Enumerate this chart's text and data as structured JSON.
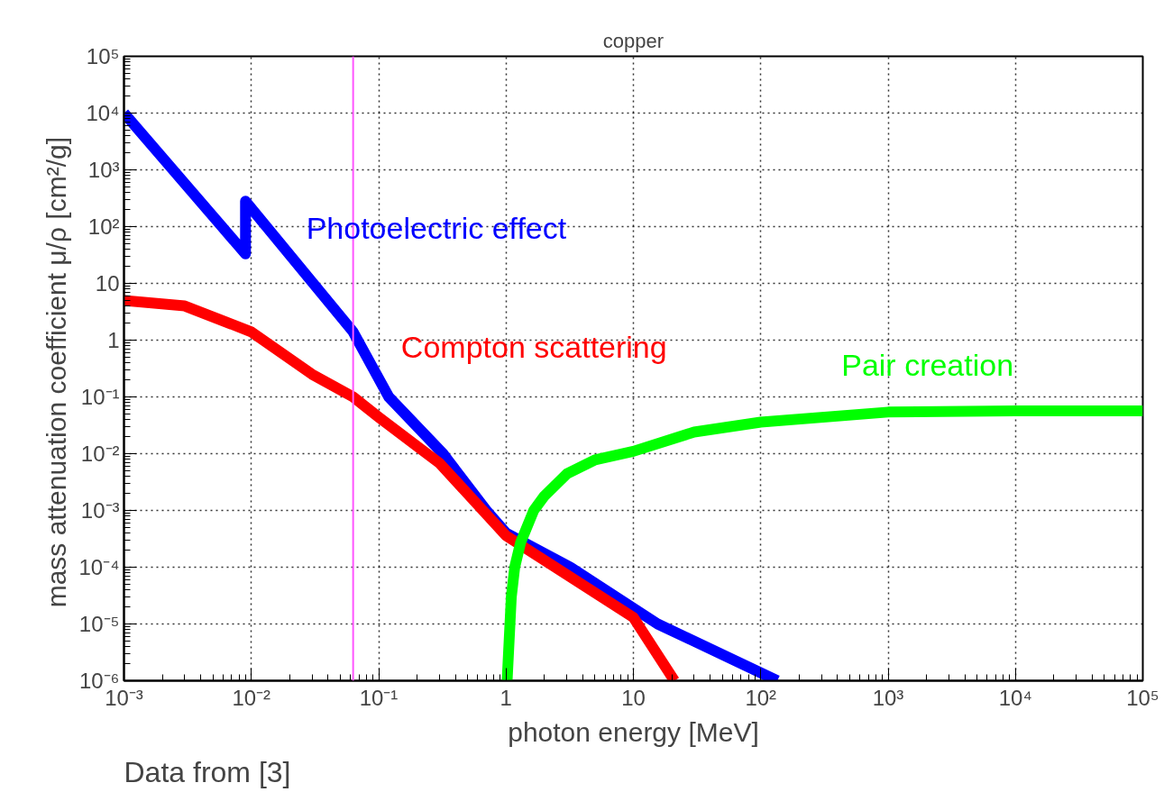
{
  "chart_data": {
    "type": "line",
    "title": "copper",
    "xlabel": "photon energy [MeV]",
    "ylabel": "mass attenuation coefficient  μ/ρ [cm²/g]",
    "annotations": [
      "Data from [3]"
    ],
    "log": "xy",
    "grid": true,
    "xlim": [
      0.001,
      100000
    ],
    "ylim": [
      1e-06,
      100000
    ],
    "xticks": [
      {
        "value": 0.001,
        "label": "10⁻³"
      },
      {
        "value": 0.01,
        "label": "10⁻²"
      },
      {
        "value": 0.1,
        "label": "10⁻¹"
      },
      1,
      10,
      {
        "value": 100,
        "label": "10²"
      },
      {
        "value": 1000,
        "label": "10³"
      },
      {
        "value": 10000,
        "label": "10⁴"
      },
      {
        "value": 100000,
        "label": "10⁵"
      }
    ],
    "yticks": [
      {
        "value": 1e-06,
        "label": "10⁻⁶"
      },
      {
        "value": 1e-05,
        "label": "10⁻⁵"
      },
      {
        "value": 0.0001,
        "label": "10⁻⁴"
      },
      {
        "value": 0.001,
        "label": "10⁻³"
      },
      {
        "value": 0.01,
        "label": "10⁻²"
      },
      {
        "value": 0.1,
        "label": "10⁻¹"
      },
      1,
      10,
      {
        "value": 100,
        "label": "10²"
      },
      {
        "value": 1000,
        "label": "10³"
      },
      {
        "value": 10000,
        "label": "10⁴"
      },
      {
        "value": 100000,
        "label": "10⁵"
      }
    ],
    "ref_lines": [
      {
        "axis": "x",
        "value": 0.063,
        "color": "#ff55ff"
      }
    ],
    "series": [
      {
        "name": "Photoelectric effect",
        "color": "#0000ff",
        "x": [
          0.001,
          0.009,
          0.009,
          0.063,
          0.12,
          0.32,
          0.7,
          1,
          3.2,
          15.5,
          135
        ],
        "values": [
          10000,
          33,
          280,
          1.4,
          0.1,
          0.01,
          0.001,
          0.0004,
          0.0001,
          1e-05,
          1e-06
        ]
      },
      {
        "name": "Compton scattering",
        "color": "#ff0000",
        "x": [
          0.001,
          0.003,
          0.01,
          0.03,
          0.063,
          0.1,
          0.3,
          1,
          10,
          21
        ],
        "values": [
          5,
          4,
          1.4,
          0.25,
          0.1,
          0.044,
          0.0068,
          0.00036,
          1.3e-05,
          1e-06
        ]
      },
      {
        "name": "Pair creation",
        "color": "#00ff00",
        "x": [
          1.02,
          1.1,
          1.17,
          1.3,
          1.65,
          2,
          3,
          5,
          10,
          30,
          100,
          1000,
          10000,
          100000
        ],
        "values": [
          1e-06,
          3e-05,
          0.0001,
          0.00027,
          0.001,
          0.0018,
          0.0044,
          0.0078,
          0.011,
          0.024,
          0.036,
          0.054,
          0.057,
          0.057
        ]
      }
    ]
  }
}
